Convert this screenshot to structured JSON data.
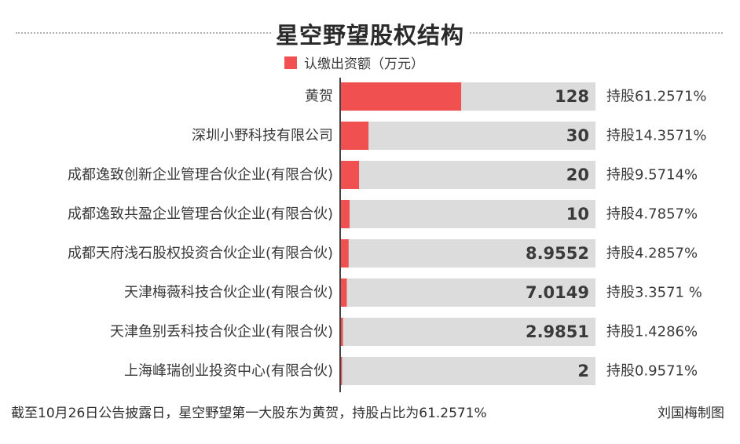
{
  "colors": {
    "bar": "#f05050",
    "track": "#dcdcdc",
    "axis": "#444444"
  },
  "chart_data": {
    "type": "bar",
    "orientation": "horizontal",
    "title": "星空野望股权结构",
    "legend": {
      "label": "认缴出资额（万元）",
      "position": "top"
    },
    "xlim": [
      0,
      270
    ],
    "categories": [
      "黄贺",
      "深圳小野科技有限公司",
      "成都逸致创新企业管理合伙企业(有限合伙)",
      "成都逸致共盈企业管理合伙企业(有限合伙)",
      "成都天府浅石股权投资合伙企业(有限合伙)",
      "天津梅薇科技合伙企业(有限合伙)",
      "天津鱼别丢科技合伙企业(有限合伙)",
      "上海峰瑞创业投资中心(有限合伙)"
    ],
    "values": [
      128,
      30,
      20,
      10,
      8.9552,
      7.0149,
      2.9851,
      2
    ],
    "value_labels": [
      "128",
      "30",
      "20",
      "10",
      "8.9552",
      "7.0149",
      "2.9851",
      "2"
    ],
    "share_labels": [
      "持股61.2571%",
      "持股14.3571%",
      "持股9.5714%",
      "持股4.7857%",
      "持股4.2857%",
      "持股3.3571 %",
      "持股1.4286%",
      "持股0.9571%"
    ]
  },
  "footer": "截至10月26日公告披露日，星空野望第一大股东为黄贺，持股占比为61.2571%",
  "credit": "刘国梅制图"
}
